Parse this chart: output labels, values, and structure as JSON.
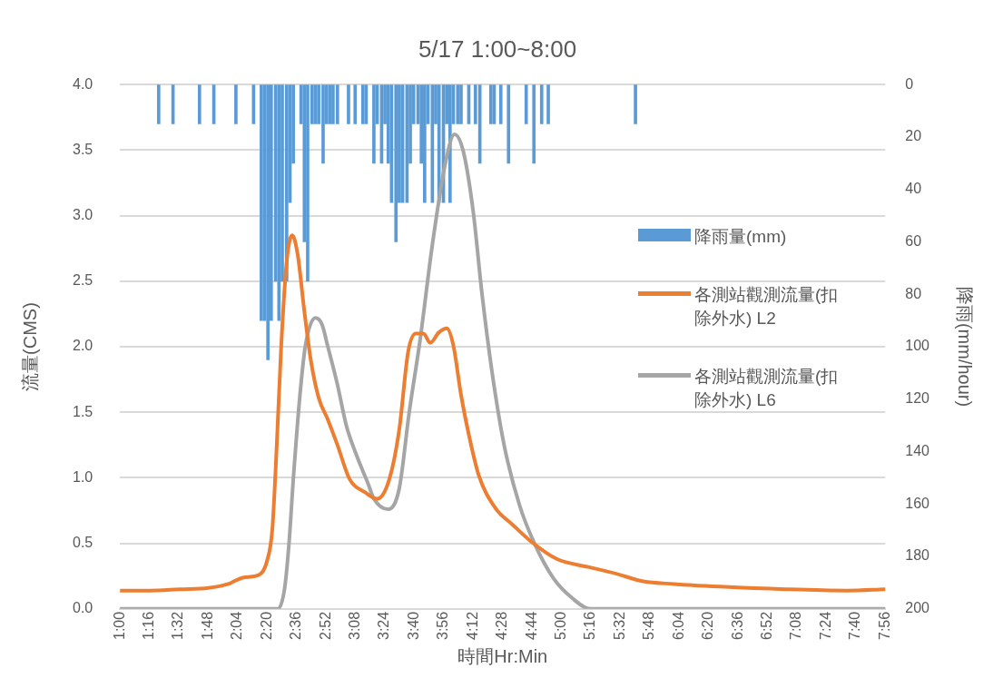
{
  "chart_data": {
    "type": "line",
    "title": "5/17 1:00~8:00",
    "xlabel": "時間Hr:Min",
    "ylabel": "流量(CMS)",
    "y2label": "降雨(mm/hour)",
    "xlim": [
      1,
      7.9333
    ],
    "xticks": [
      {
        "value": 1,
        "label": "1:00"
      },
      {
        "value": 1.2667,
        "label": "1:16"
      },
      {
        "value": 1.5333,
        "label": "1:32"
      },
      {
        "value": 1.8,
        "label": "1:48"
      },
      {
        "value": 2.0667,
        "label": "2:04"
      },
      {
        "value": 2.3333,
        "label": "2:20"
      },
      {
        "value": 2.6,
        "label": "2:36"
      },
      {
        "value": 2.8667,
        "label": "2:52"
      },
      {
        "value": 3.1333,
        "label": "3:08"
      },
      {
        "value": 3.4,
        "label": "3:24"
      },
      {
        "value": 3.6667,
        "label": "3:40"
      },
      {
        "value": 3.9333,
        "label": "3:56"
      },
      {
        "value": 4.2,
        "label": "4:12"
      },
      {
        "value": 4.4667,
        "label": "4:28"
      },
      {
        "value": 4.7333,
        "label": "4:44"
      },
      {
        "value": 5,
        "label": "5:00"
      },
      {
        "value": 5.2667,
        "label": "5:16"
      },
      {
        "value": 5.5333,
        "label": "5:32"
      },
      {
        "value": 5.8,
        "label": "5:48"
      },
      {
        "value": 6.0667,
        "label": "6:04"
      },
      {
        "value": 6.3333,
        "label": "6:20"
      },
      {
        "value": 6.6,
        "label": "6:36"
      },
      {
        "value": 6.8667,
        "label": "6:52"
      },
      {
        "value": 7.1333,
        "label": "7:08"
      },
      {
        "value": 7.4,
        "label": "7:24"
      },
      {
        "value": 7.6667,
        "label": "7:40"
      },
      {
        "value": 7.9333,
        "label": "7:56"
      }
    ],
    "ylim": [
      0,
      4
    ],
    "yticks": [
      {
        "value": 0,
        "label": "0.0"
      },
      0.5,
      {
        "value": 1,
        "label": "1.0"
      },
      1.5,
      {
        "value": 2,
        "label": "2.0"
      },
      2.5,
      {
        "value": 3,
        "label": "3.0"
      },
      3.5,
      {
        "value": 4,
        "label": "4.0"
      }
    ],
    "y2lim": [
      200,
      0
    ],
    "y2ticks": [
      0,
      20,
      40,
      60,
      80,
      100,
      120,
      140,
      160,
      180,
      200
    ],
    "grid": "y",
    "legend": "right",
    "line_style": "solid",
    "series": [
      {
        "name": "降雨量(mm)",
        "type": "bar",
        "axis": "y2",
        "color": "#5b9bd5",
        "x": [
          1.35,
          1.48,
          1.72,
          1.85,
          2.05,
          2.21,
          2.28,
          2.31,
          2.34,
          2.37,
          2.41,
          2.44,
          2.47,
          2.51,
          2.54,
          2.57,
          2.64,
          2.67,
          2.7,
          2.74,
          2.77,
          2.8,
          2.84,
          2.87,
          2.9,
          2.93,
          2.97,
          3.07,
          3.13,
          3.2,
          3.23,
          3.3,
          3.33,
          3.37,
          3.4,
          3.43,
          3.46,
          3.5,
          3.53,
          3.56,
          3.6,
          3.63,
          3.66,
          3.7,
          3.73,
          3.76,
          3.79,
          3.83,
          3.86,
          3.89,
          3.93,
          3.96,
          3.99,
          4.02,
          4.06,
          4.09,
          4.16,
          4.22,
          4.26,
          4.36,
          4.39,
          4.45,
          4.52,
          4.68,
          4.75,
          4.82,
          4.88,
          5.67
        ],
        "values": [
          15,
          15,
          15,
          15,
          15,
          15,
          90,
          90,
          105,
          90,
          75,
          90,
          75,
          75,
          45,
          30,
          15,
          60,
          75,
          15,
          15,
          15,
          30,
          15,
          15,
          15,
          15,
          15,
          15,
          15,
          15,
          30,
          15,
          30,
          15,
          30,
          45,
          60,
          45,
          45,
          45,
          30,
          15,
          15,
          30,
          45,
          15,
          45,
          15,
          45,
          45,
          15,
          45,
          15,
          15,
          15,
          15,
          15,
          30,
          15,
          15,
          15,
          30,
          15,
          30,
          15,
          15,
          15
        ]
      },
      {
        "name": "各測站觀測流量(扣除外水) L2",
        "color": "#ed7d31",
        "x": [
          1,
          1.27,
          1.54,
          1.8,
          1.98,
          2.12,
          2.26,
          2.33,
          2.38,
          2.42,
          2.46,
          2.51,
          2.56,
          2.61,
          2.67,
          2.73,
          2.8,
          2.88,
          2.97,
          3.08,
          3.22,
          3.33,
          3.44,
          3.53,
          3.61,
          3.68,
          3.75,
          3.81,
          3.89,
          3.96,
          4.02,
          4.09,
          4.16,
          4.25,
          4.4,
          4.56,
          4.73,
          4.96,
          5.24,
          5.49,
          5.74,
          6.02,
          6.44,
          7.03,
          7.59,
          7.93
        ],
        "values": [
          0.14,
          0.14,
          0.15,
          0.16,
          0.19,
          0.24,
          0.26,
          0.36,
          0.61,
          1.25,
          2.0,
          2.65,
          2.85,
          2.7,
          2.27,
          1.89,
          1.61,
          1.45,
          1.25,
          0.99,
          0.89,
          0.84,
          0.99,
          1.37,
          1.96,
          2.1,
          2.1,
          2.03,
          2.11,
          2.14,
          2.01,
          1.63,
          1.33,
          1.02,
          0.77,
          0.64,
          0.51,
          0.38,
          0.32,
          0.27,
          0.21,
          0.19,
          0.17,
          0.15,
          0.14,
          0.15
        ]
      },
      {
        "name": "各測站觀測流量(扣除外水) L6",
        "color": "#a5a5a5",
        "x": [
          1,
          2.43,
          2.49,
          2.53,
          2.57,
          2.63,
          2.68,
          2.77,
          2.83,
          2.88,
          2.97,
          3.05,
          3.13,
          3.25,
          3.3,
          3.43,
          3.53,
          3.62,
          3.72,
          3.83,
          3.95,
          4.03,
          4.11,
          4.2,
          4.28,
          4.37,
          4.48,
          4.62,
          4.76,
          4.93,
          5.1,
          5.26,
          7.93
        ],
        "values": [
          0,
          0,
          0.15,
          0.49,
          0.99,
          1.63,
          2.01,
          2.22,
          2.17,
          2.01,
          1.71,
          1.4,
          1.2,
          0.95,
          0.84,
          0.76,
          0.92,
          1.5,
          2.06,
          2.78,
          3.41,
          3.62,
          3.49,
          3.03,
          2.4,
          1.81,
          1.25,
          0.79,
          0.49,
          0.23,
          0.08,
          0,
          0
        ]
      }
    ]
  }
}
